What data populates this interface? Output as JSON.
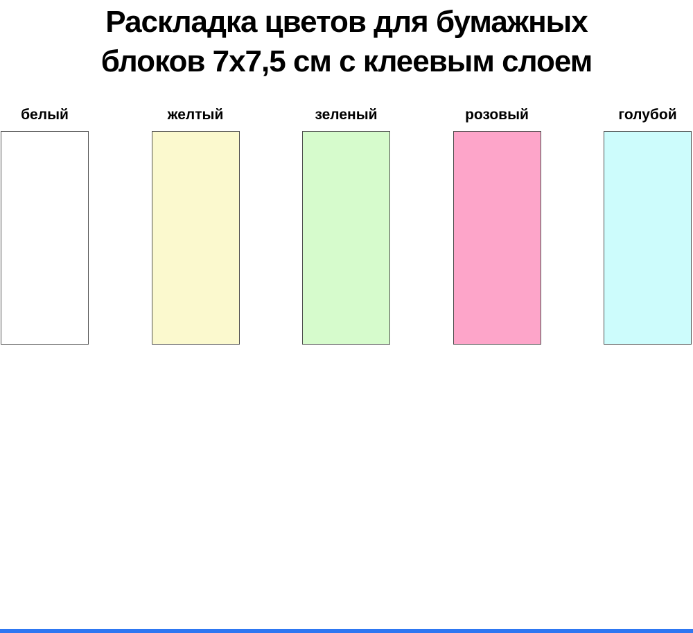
{
  "title": {
    "line1": "Раскладка цветов для бумажных",
    "line2": "блоков 7х7,5 см с клеевым слоем"
  },
  "swatches": [
    {
      "label": "белый",
      "color": "#ffffff"
    },
    {
      "label": "желтый",
      "color": "#fbf9ce"
    },
    {
      "label": "зеленый",
      "color": "#d6fbcc"
    },
    {
      "label": "розовый",
      "color": "#fda5c9"
    },
    {
      "label": "голубой",
      "color": "#cdfcfc"
    }
  ],
  "colors": {
    "swatch_border": "#4f4f4f",
    "title_text": "#000000",
    "bottom_bar": "#2e77f2"
  }
}
